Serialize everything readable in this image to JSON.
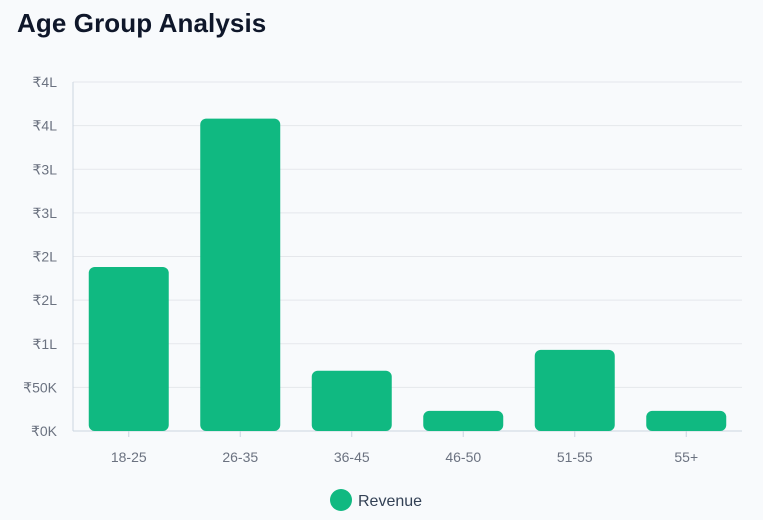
{
  "chart_data": {
    "type": "bar",
    "title": "Age Group Analysis",
    "categories": [
      "18-25",
      "26-35",
      "36-45",
      "46-50",
      "51-55",
      "55+"
    ],
    "series": [
      {
        "name": "Revenue",
        "values": [
          188000,
          358000,
          69000,
          23000,
          93000,
          23000
        ]
      }
    ],
    "yticks": [
      {
        "value": 0,
        "label": "₹0K"
      },
      {
        "value": 50000,
        "label": "₹50K"
      },
      {
        "value": 100000,
        "label": "₹1L"
      },
      {
        "value": 150000,
        "label": "₹2L"
      },
      {
        "value": 200000,
        "label": "₹2L"
      },
      {
        "value": 250000,
        "label": "₹3L"
      },
      {
        "value": 300000,
        "label": "₹3L"
      },
      {
        "value": 350000,
        "label": "₹4L"
      },
      {
        "value": 400000,
        "label": "₹4L"
      }
    ],
    "ylim": [
      0,
      400000
    ],
    "grid": true,
    "legend": "bottom-center",
    "colors": {
      "bar": "#10b981",
      "grid": "#e5e7eb",
      "axis": "#cbd5e1"
    }
  }
}
